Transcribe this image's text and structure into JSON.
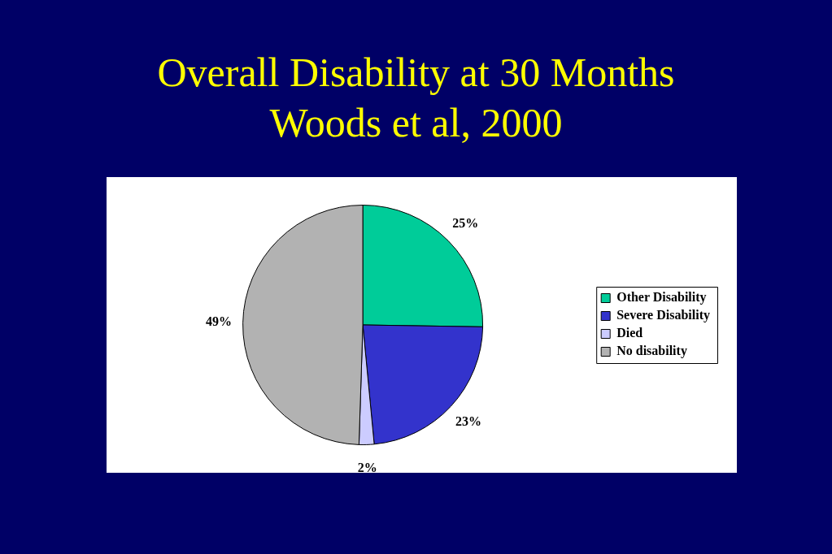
{
  "chart_data": {
    "type": "pie",
    "title": "Overall Disability at 30 Months\nWoods et al, 2000",
    "categories": [
      "Other Disability",
      "Severe Disability",
      "Died",
      "No disability"
    ],
    "values": [
      25,
      23,
      2,
      49
    ],
    "colors": [
      "#00cc99",
      "#3333cc",
      "#ccccff",
      "#b2b2b2"
    ],
    "value_labels": [
      "25%",
      "23%",
      "2%",
      "49%"
    ],
    "legend": "right"
  }
}
